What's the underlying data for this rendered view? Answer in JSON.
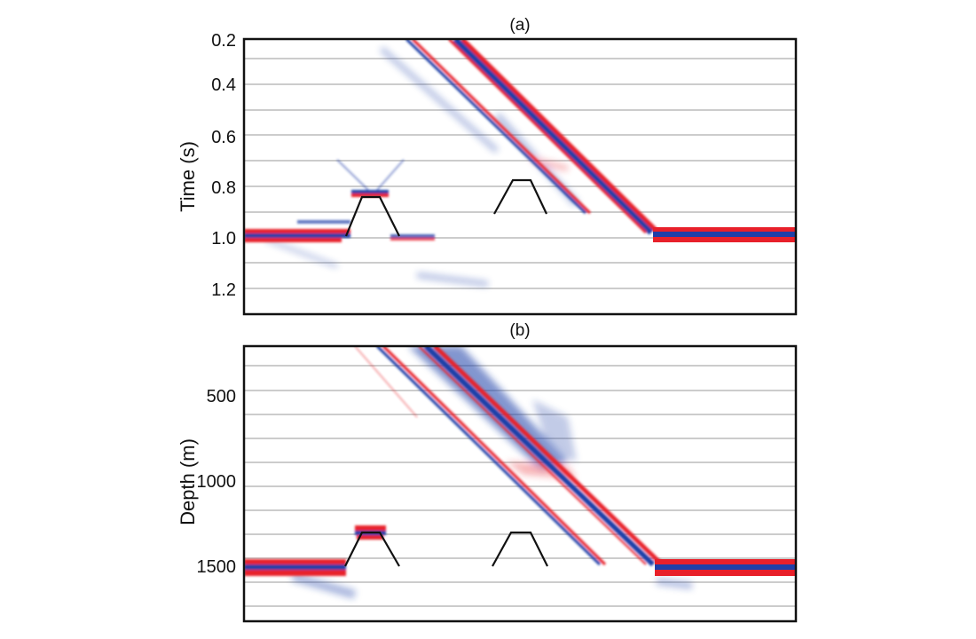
{
  "chart_data": [
    {
      "type": "seismic-section",
      "panel_label": "(a)",
      "ylabel": "Time (s)",
      "yticks": [
        "0.2",
        "0.4",
        "0.6",
        "0.8",
        "1.0",
        "1.2"
      ],
      "ytick_values": [
        0.2,
        0.4,
        0.6,
        0.8,
        1.0,
        1.2
      ],
      "ylim": [
        0.2,
        1.3
      ],
      "y_inverted": true,
      "grid_lines": 11,
      "colors": {
        "positive": "#e8202a",
        "negative": "#1f3fa8",
        "grid": "#9a9a9a"
      },
      "events": [
        {
          "name": "flat-reflector-left",
          "y": 0.99
        },
        {
          "name": "flat-reflector-right",
          "y": 0.99
        },
        {
          "name": "dipping-reflector",
          "y_top": 0.2,
          "y_bottom": 0.99
        },
        {
          "name": "diffraction-hump",
          "y_top": 0.82,
          "y_bottom": 0.99
        }
      ]
    },
    {
      "type": "seismic-section",
      "panel_label": "(b)",
      "ylabel": "Depth (m)",
      "yticks": [
        "500",
        "1000",
        "1500"
      ],
      "ytick_values": [
        500,
        1000,
        1500
      ],
      "ylim": [
        250,
        1800
      ],
      "y_inverted": true,
      "grid_lines": 11,
      "colors": {
        "positive": "#e8202a",
        "negative": "#1f3fa8",
        "grid": "#9a9a9a"
      },
      "events": [
        {
          "name": "flat-reflector-left",
          "y": 1500
        },
        {
          "name": "flat-reflector-right",
          "y": 1500
        },
        {
          "name": "dipping-reflector",
          "y_top": 250,
          "y_bottom": 1500
        },
        {
          "name": "diffraction-hump",
          "y_top": 1300,
          "y_bottom": 1500
        }
      ]
    }
  ]
}
